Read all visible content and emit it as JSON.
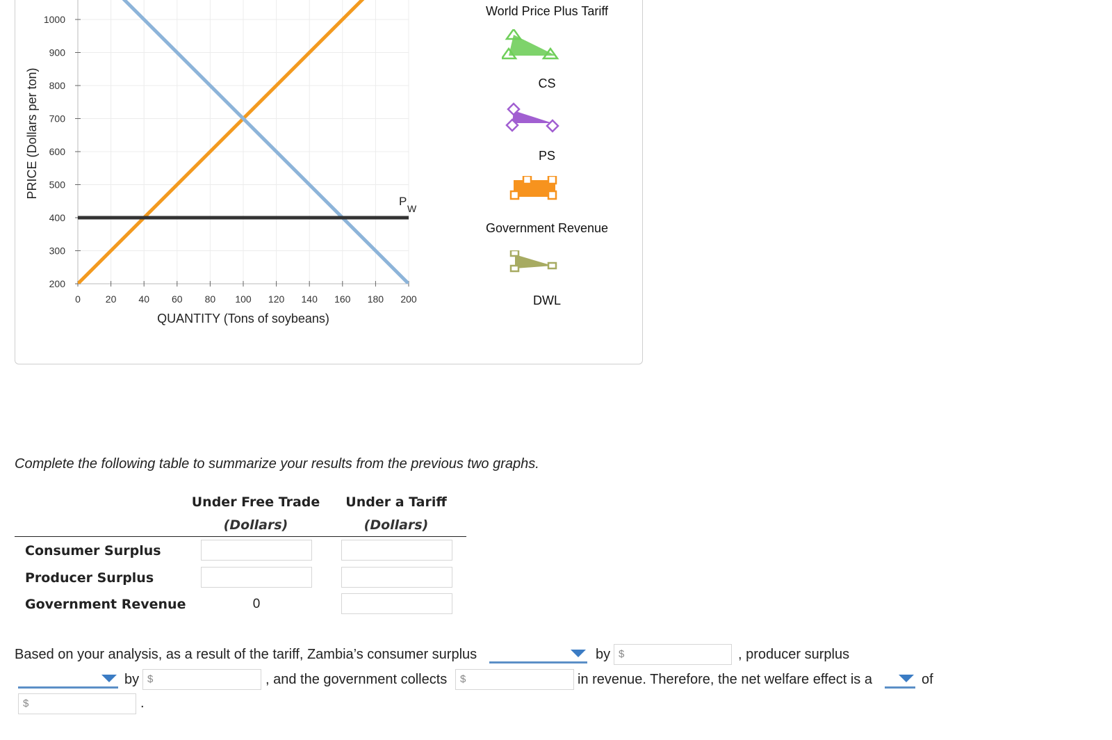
{
  "chart_data": {
    "type": "line",
    "xlabel": "QUANTITY (Tons of soybeans)",
    "ylabel": "PRICE (Dollars per ton)",
    "xlim": [
      0,
      200
    ],
    "ylim": [
      200,
      1000
    ],
    "x_ticks": [
      "0",
      "20",
      "40",
      "60",
      "80",
      "100",
      "120",
      "140",
      "160",
      "180",
      "200"
    ],
    "y_ticks": [
      "200",
      "300",
      "400",
      "500",
      "600",
      "700",
      "800",
      "900",
      "1000"
    ],
    "grid": true,
    "series": [
      {
        "name": "",
        "color": "#f39a1f",
        "points": [
          [
            0,
            200
          ],
          [
            100,
            700
          ],
          [
            200,
            1200
          ]
        ]
      },
      {
        "name": "",
        "color": "#8db4d9",
        "points": [
          [
            0,
            1200
          ],
          [
            100,
            700
          ],
          [
            200,
            200
          ]
        ]
      },
      {
        "name": "P_W",
        "color": "#333333",
        "points": [
          [
            0,
            400
          ],
          [
            200,
            400
          ]
        ]
      }
    ],
    "pw_label": "P",
    "pw_sub": "W"
  },
  "legend": {
    "items": [
      {
        "label": "World Price Plus Tariff",
        "color": "#6fcf5a",
        "icon": "line-triangle-icon"
      },
      {
        "label": "CS",
        "color": "#7ed36b",
        "icon": "triangle-shape-icon"
      },
      {
        "label": "PS",
        "color": "#a15fd1",
        "icon": "diamond-shape-icon"
      },
      {
        "label": "Government Revenue",
        "color": "#f7931e",
        "icon": "rectangle-shape-icon"
      },
      {
        "label": "DWL",
        "color": "#a7ab62",
        "icon": "square-triangle-shape-icon"
      }
    ]
  },
  "instructions": "Complete the following table to summarize your results from the previous two graphs.",
  "table": {
    "col1_title": "Under Free Trade",
    "col1_sub": "(Dollars)",
    "col2_title": "Under a Tariff",
    "col2_sub": "(Dollars)",
    "rows": [
      {
        "label": "Consumer Surplus",
        "free": "",
        "tariff": ""
      },
      {
        "label": "Producer Surplus",
        "free": "",
        "tariff": ""
      },
      {
        "label": "Government Revenue",
        "free": "0",
        "tariff": ""
      }
    ]
  },
  "analysis": {
    "p1": "Based on your analysis, as a result of the tariff, Zambia’s consumer surplus",
    "by1": "by",
    "p2": ", producer surplus",
    "by2": "by",
    "p3": ", and the government collects",
    "p4": "in revenue. Therefore, the net welfare effect is a",
    "of": "of",
    "dollar": "$",
    "period": "."
  }
}
